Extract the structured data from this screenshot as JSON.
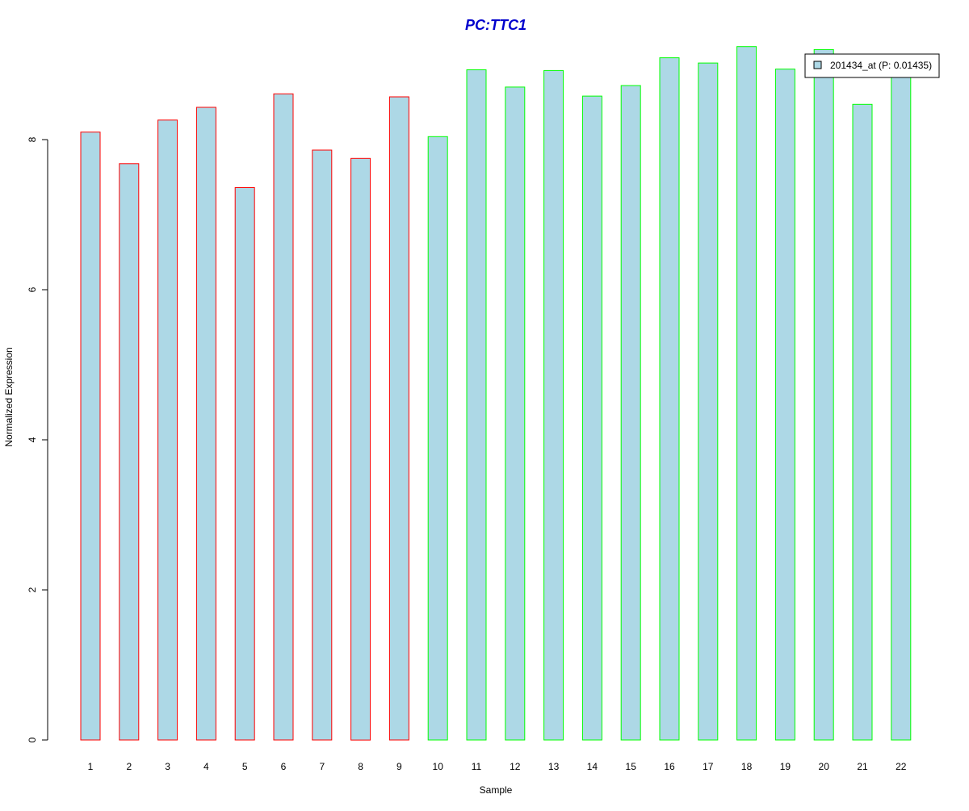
{
  "chart_data": {
    "type": "bar",
    "title": "PC:TTC1",
    "xlabel": "Sample",
    "ylabel": "Normalized Expression",
    "ylim": [
      0,
      9.25
    ],
    "yticks": [
      0,
      2,
      4,
      6,
      8
    ],
    "grid": false,
    "legend_position": "top-right",
    "categories": [
      "1",
      "2",
      "3",
      "4",
      "5",
      "6",
      "7",
      "8",
      "9",
      "10",
      "11",
      "12",
      "13",
      "14",
      "15",
      "16",
      "17",
      "18",
      "19",
      "20",
      "21",
      "22"
    ],
    "series": [
      {
        "name": "201434_at (P: 0.01435)",
        "fill_color": "#add8e6",
        "values": [
          8.1,
          7.68,
          8.26,
          8.43,
          7.36,
          8.61,
          7.86,
          7.75,
          8.57,
          8.04,
          8.93,
          8.7,
          8.92,
          8.58,
          8.72,
          9.09,
          9.02,
          9.24,
          8.94,
          9.2,
          8.47,
          8.97
        ]
      }
    ],
    "group_border_colors": [
      "#ff0000",
      "#ff0000",
      "#ff0000",
      "#ff0000",
      "#ff0000",
      "#ff0000",
      "#ff0000",
      "#ff0000",
      "#ff0000",
      "#00ff00",
      "#00ff00",
      "#00ff00",
      "#00ff00",
      "#00ff00",
      "#00ff00",
      "#00ff00",
      "#00ff00",
      "#00ff00",
      "#00ff00",
      "#00ff00",
      "#00ff00",
      "#00ff00"
    ],
    "title_color": "#0000cd"
  }
}
